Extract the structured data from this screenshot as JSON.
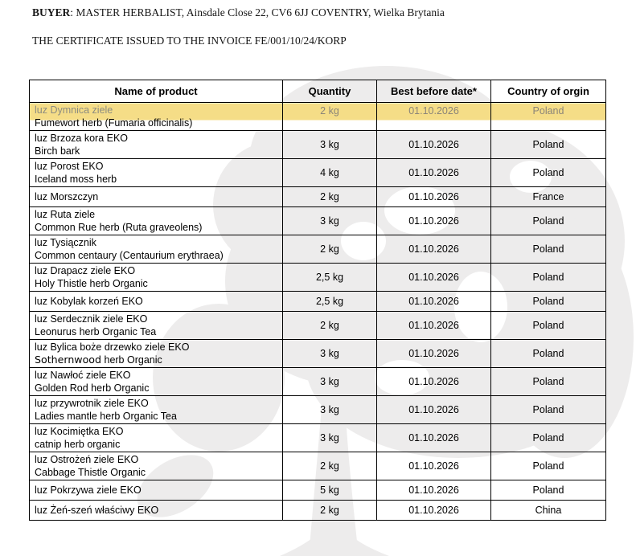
{
  "page": {
    "buyer_label": "BUYER",
    "buyer_rest": ": MASTER HERBALIST, Ainsdale Close 22, CV6 6JJ COVENTRY, Wielka Brytania",
    "certificate_line": "THE CERTIFICATE ISSUED TO THE INVOICE FE/001/10/24/KORP"
  },
  "colors": {
    "highlight": "#F5DD87",
    "highlight_text": "#8B8578",
    "watermark": "#EDECEC",
    "border": "#000000"
  },
  "watermark": {
    "name": "tree-silhouette"
  },
  "table": {
    "headers": [
      "Name of product",
      "Quantity",
      "Best before date*",
      "Country of orgin"
    ],
    "rows": [
      {
        "highlight": true,
        "name_lines": [
          [
            {
              "text": "luz Dymnica ziele"
            }
          ],
          [
            {
              "text": "Fumewort herb (Fumaria officinalis)"
            }
          ]
        ],
        "quantity": "2 kg",
        "best_before": "01.10.2026",
        "country": "Poland"
      },
      {
        "name_lines": [
          [
            {
              "text": "luz Brzoza kora EKO"
            }
          ],
          [
            {
              "text": "Birch bark"
            }
          ]
        ],
        "quantity": "3 kg",
        "best_before": "01.10.2026",
        "country": "Poland"
      },
      {
        "name_lines": [
          [
            {
              "text": "luz Porost EKO"
            }
          ],
          [
            {
              "text": "Iceland moss herb"
            }
          ]
        ],
        "quantity": "4 kg",
        "best_before": "01.10.2026",
        "country": "Poland"
      },
      {
        "name_lines": [
          [
            {
              "text": "luz Morszczyn"
            }
          ]
        ],
        "quantity": "2 kg",
        "best_before": "01.10.2026",
        "country": "France"
      },
      {
        "name_lines": [
          [
            {
              "text": "luz Ruta ziele"
            }
          ],
          [
            {
              "text": "Common Rue herb (Ruta graveolens)"
            }
          ]
        ],
        "quantity": "3 kg",
        "best_before": "01.10.2026",
        "country": "Poland"
      },
      {
        "name_lines": [
          [
            {
              "text": "luz Tysiącznik"
            }
          ],
          [
            {
              "text": "Common centaury (Centaurium erythraea)"
            }
          ]
        ],
        "quantity": "2 kg",
        "best_before": "01.10.2026",
        "country": "Poland"
      },
      {
        "name_lines": [
          [
            {
              "text": "luz Drapacz ziele EKO"
            }
          ],
          [
            {
              "text": "Holy Thistle herb Organic"
            }
          ]
        ],
        "quantity": "2,5 kg",
        "best_before": "01.10.2026",
        "country": "Poland"
      },
      {
        "name_lines": [
          [
            {
              "text": "luz Kobylak korzeń EKO"
            }
          ]
        ],
        "quantity": "2,5 kg",
        "best_before": "01.10.2026",
        "country": "Poland"
      },
      {
        "name_lines": [
          [
            {
              "text": "luz Serdecznik ziele EKO"
            }
          ],
          [
            {
              "text": "Leonurus herb Organic Tea"
            }
          ]
        ],
        "quantity": "2 kg",
        "best_before": "01.10.2026",
        "country": "Poland"
      },
      {
        "name_lines": [
          [
            {
              "text": "luz Bylica boże drzewko ziele EKO"
            }
          ],
          [
            {
              "text": "Sothernwood",
              "alt_font": true
            },
            {
              "text": " herb Organic"
            }
          ]
        ],
        "quantity": "3 kg",
        "best_before": "01.10.2026",
        "country": "Poland"
      },
      {
        "name_lines": [
          [
            {
              "text": "luz Nawłoć ziele EKO"
            }
          ],
          [
            {
              "text": "Golden Rod herb Organic"
            }
          ]
        ],
        "quantity": "3 kg",
        "best_before": "01.10.2026",
        "country": "Poland"
      },
      {
        "name_lines": [
          [
            {
              "text": "luz przywrotnik ziele EKO"
            }
          ],
          [
            {
              "text": "Ladies mantle herb Organic Tea"
            }
          ]
        ],
        "quantity": "3 kg",
        "best_before": "01.10.2026",
        "country": "Poland"
      },
      {
        "name_lines": [
          [
            {
              "text": "luz Kocimiętka EKO"
            }
          ],
          [
            {
              "text": "catnip herb organic"
            }
          ]
        ],
        "quantity": "3 kg",
        "best_before": "01.10.2026",
        "country": "Poland"
      },
      {
        "name_lines": [
          [
            {
              "text": "luz Ostrożeń ziele EKO"
            }
          ],
          [
            {
              "text": "Cabbage Thistle Organic"
            }
          ]
        ],
        "quantity": "2 kg",
        "best_before": "01.10.2026",
        "country": "Poland"
      },
      {
        "name_lines": [
          [
            {
              "text": "luz Pokrzywa ziele EKO"
            }
          ]
        ],
        "quantity": "5 kg",
        "best_before": "01.10.2026",
        "country": "Poland"
      },
      {
        "name_lines": [
          [
            {
              "text": "luz Żeń-szeń właściwy EKO"
            }
          ]
        ],
        "quantity": "2 kg",
        "best_before": "01.10.2026",
        "country": "China"
      }
    ]
  }
}
